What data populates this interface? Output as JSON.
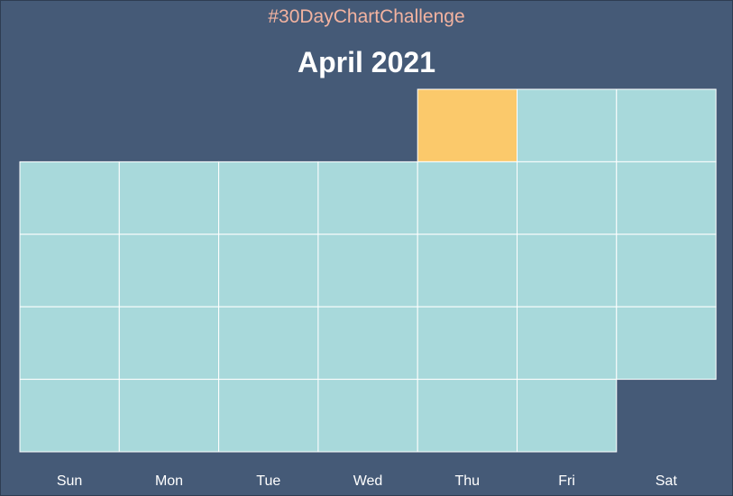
{
  "header": {
    "hashtag": "#30DayChartChallenge",
    "title": "April 2021"
  },
  "weekdays": [
    "Sun",
    "Mon",
    "Tue",
    "Wed",
    "Thu",
    "Fri",
    "Sat"
  ],
  "colors": {
    "background": "#455a77",
    "day_cell": "#a8d9db",
    "highlight_cell": "#fbc96b",
    "grid_line": "#ffffff",
    "hashtag_text": "#f3b3a0"
  },
  "chart_data": {
    "type": "heatmap",
    "title": "April 2021",
    "month": "April",
    "year": 2021,
    "days_in_month": 30,
    "first_weekday": "Thu",
    "highlighted_days": [
      1
    ],
    "x_categories": [
      "Sun",
      "Mon",
      "Tue",
      "Wed",
      "Thu",
      "Fri",
      "Sat"
    ],
    "legend": "none"
  }
}
